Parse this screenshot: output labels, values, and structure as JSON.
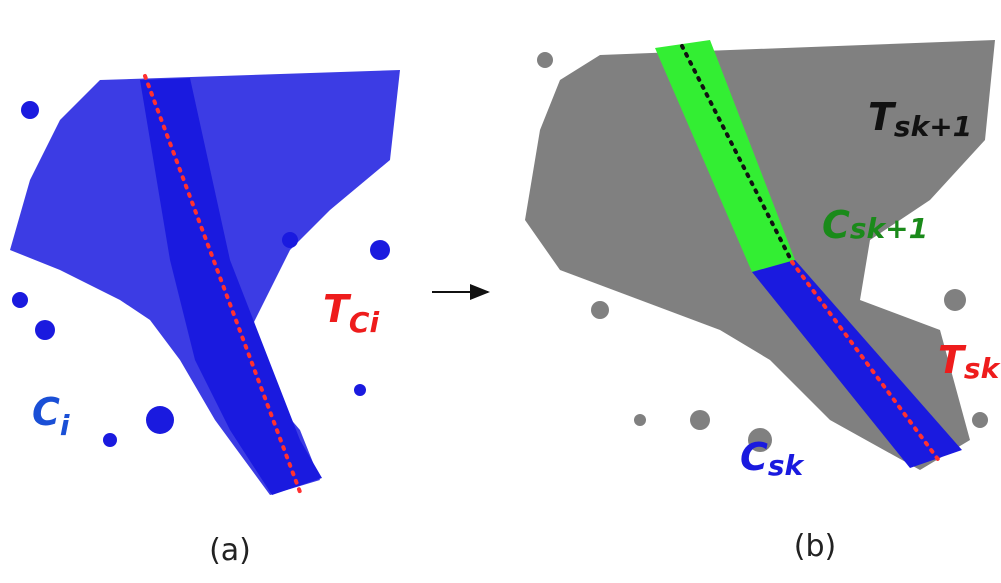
{
  "panels": [
    {
      "caption": "(a)",
      "labels": [
        {
          "main": "C",
          "sub": "i"
        },
        {
          "main": "T",
          "sub": "Ci"
        }
      ]
    },
    {
      "caption": "(b)",
      "labels": [
        {
          "main": "T",
          "sub": "sk+1"
        },
        {
          "main": "C",
          "sub": "sk+1"
        },
        {
          "main": "T",
          "sub": "sk"
        },
        {
          "main": "C",
          "sub": "sk"
        }
      ]
    }
  ]
}
